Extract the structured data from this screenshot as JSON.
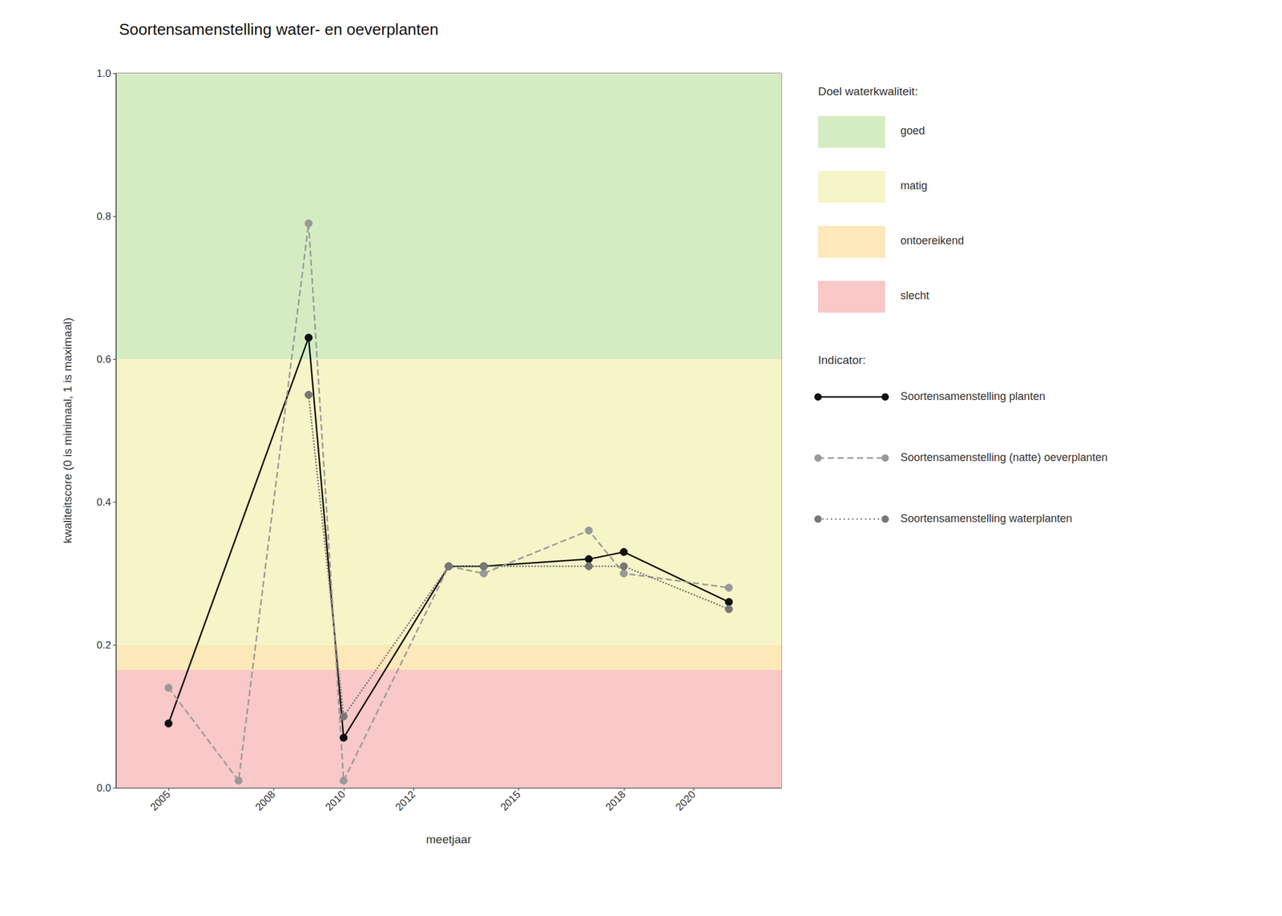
{
  "chart_data": {
    "type": "line",
    "title": "Soortensamenstelling water- en oeverplanten",
    "x_label": "meetjaar",
    "y_label": "kwaliteitscore (0 is minimaal, 1 is maximaal)",
    "xlim": [
      2003.5,
      2022.5
    ],
    "ylim": [
      0.0,
      1.0
    ],
    "xticks": [
      2005,
      2008,
      2010,
      2012,
      2015,
      2018,
      2020
    ],
    "yticks": [
      {
        "value": 0.0,
        "label": "0.0"
      },
      0.2,
      0.4,
      0.6,
      0.8,
      {
        "value": 1.0,
        "label": "1.0"
      }
    ],
    "grid": true,
    "legend": "right",
    "zone_legend_title": "Doel waterkwaliteit:",
    "zones": [
      {
        "name": "goed",
        "ymin": 0.6,
        "ymax": 1.0,
        "color": "#d5ecc2"
      },
      {
        "name": "matig",
        "ymin": 0.2,
        "ymax": 0.6,
        "color": "#f5f5c8"
      },
      {
        "name": "ontoereikend",
        "ymin": 0.165,
        "ymax": 0.2,
        "color": "#fce8b8"
      },
      {
        "name": "slecht",
        "ymin": 0.0,
        "ymax": 0.165,
        "color": "#f9c8c8"
      }
    ],
    "series_legend_title": "Indicator:",
    "series": [
      {
        "name": "Soortensamenstelling planten",
        "color": "#111111",
        "line_style": "solid",
        "marker": "circle",
        "x": [
          2005,
          2009,
          2010,
          2013,
          2014,
          2017,
          2018,
          2021
        ],
        "values": [
          0.09,
          0.63,
          0.07,
          0.31,
          0.31,
          0.32,
          0.33,
          0.26
        ]
      },
      {
        "name": "Soortensamenstelling (natte) oeverplanten",
        "color": "#999999",
        "line_style": "dashed",
        "marker": "circle",
        "x": [
          2005,
          2007,
          2009,
          2010,
          2013,
          2014,
          2017,
          2018,
          2021
        ],
        "values": [
          0.14,
          0.01,
          0.79,
          0.01,
          0.31,
          0.3,
          0.36,
          0.3,
          0.28
        ]
      },
      {
        "name": "Soortensamenstelling waterplanten",
        "color": "#777777",
        "line_style": "dotted",
        "marker": "circle",
        "x": [
          2009,
          2010,
          2013,
          2014,
          2017,
          2018,
          2021
        ],
        "values": [
          0.55,
          0.1,
          0.31,
          0.31,
          0.31,
          0.31,
          0.25
        ]
      }
    ]
  }
}
